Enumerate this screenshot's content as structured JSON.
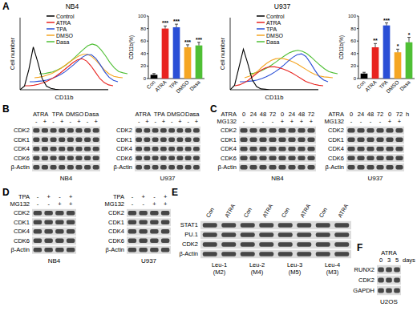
{
  "panel_labels": [
    "A",
    "B",
    "C",
    "D",
    "E",
    "F"
  ],
  "chart_data": [
    {
      "type": "line",
      "title": "NB4",
      "xlabel": "CD11b",
      "ylabel": "Cell number",
      "xlim": [
        0,
        10
      ],
      "ylim": [
        0,
        1.6
      ],
      "tick_labels": false,
      "legend": "upper left",
      "x": [
        0,
        0.5,
        1,
        1.5,
        2,
        2.5,
        3,
        3.5,
        4,
        4.5,
        5,
        5.5,
        6,
        6.5,
        7,
        7.5,
        8,
        8.5,
        9,
        9.5,
        10
      ],
      "series": [
        {
          "name": "Control",
          "color": "#000000",
          "values": [
            0,
            0.08,
            0.45,
            0.95,
            0.62,
            0.25,
            0.08,
            0.03,
            0.01,
            0,
            0,
            0,
            0,
            0,
            0,
            0,
            0,
            0,
            0,
            0,
            0
          ]
        },
        {
          "name": "ATRA",
          "color": "#e8231f",
          "values": [
            0,
            0,
            0.01,
            0.03,
            0.06,
            0.1,
            0.15,
            0.21,
            0.28,
            0.36,
            0.44,
            0.52,
            0.58,
            0.6,
            0.55,
            0.44,
            0.3,
            0.16,
            0.07,
            0.02,
            0
          ]
        },
        {
          "name": "TPA",
          "color": "#2a4fd6",
          "values": [
            0,
            0,
            0.01,
            0.02,
            0.04,
            0.07,
            0.11,
            0.16,
            0.22,
            0.3,
            0.38,
            0.47,
            0.55,
            0.6,
            0.6,
            0.52,
            0.38,
            0.22,
            0.1,
            0.03,
            0
          ]
        },
        {
          "name": "DMSO",
          "color": "#f5a623",
          "values": [
            0,
            0.01,
            0.03,
            0.06,
            0.1,
            0.15,
            0.21,
            0.28,
            0.35,
            0.42,
            0.48,
            0.52,
            0.52,
            0.47,
            0.38,
            0.27,
            0.16,
            0.08,
            0.03,
            0.01,
            0
          ]
        },
        {
          "name": "Dasa",
          "color": "#4fbf35",
          "values": [
            0,
            0,
            0.02,
            0.04,
            0.08,
            0.13,
            0.19,
            0.27,
            0.36,
            0.45,
            0.54,
            0.62,
            0.66,
            0.63,
            0.53,
            0.4,
            0.25,
            0.13,
            0.05,
            0.02,
            0
          ]
        }
      ]
    },
    {
      "type": "bar",
      "ylabel": "CD11b(%)",
      "categories": [
        "Con",
        "ATRA",
        "TPA",
        "DMSO",
        "Dasa"
      ],
      "values": [
        6,
        80,
        82,
        50,
        53
      ],
      "errors": [
        2,
        4,
        5,
        4,
        5
      ],
      "colors": [
        "#000000",
        "#e8231f",
        "#2a4fd6",
        "#f5a623",
        "#4fbf35"
      ],
      "ylim": [
        0,
        100
      ],
      "yticks": [
        0,
        20,
        40,
        60,
        80,
        100
      ],
      "annotations": [
        null,
        "***",
        "***",
        "***",
        "***"
      ]
    },
    {
      "type": "line",
      "title": "U937",
      "xlabel": "CD11b",
      "ylabel": "Cell number",
      "xlim": [
        0,
        10
      ],
      "ylim": [
        0,
        1.6
      ],
      "tick_labels": false,
      "legend": "upper left",
      "x": [
        0,
        0.5,
        1,
        1.5,
        2,
        2.5,
        3,
        3.5,
        4,
        4.5,
        5,
        5.5,
        6,
        6.5,
        7,
        7.5,
        8,
        8.5,
        9,
        9.5,
        10
      ],
      "series": [
        {
          "name": "Control",
          "color": "#000000",
          "values": [
            0,
            0.1,
            0.5,
            0.9,
            0.58,
            0.22,
            0.07,
            0.02,
            0.01,
            0,
            0,
            0,
            0,
            0,
            0,
            0,
            0,
            0,
            0,
            0,
            0
          ]
        },
        {
          "name": "ATRA",
          "color": "#e8231f",
          "values": [
            0,
            0.02,
            0.06,
            0.12,
            0.2,
            0.28,
            0.35,
            0.4,
            0.42,
            0.42,
            0.4,
            0.37,
            0.33,
            0.28,
            0.22,
            0.16,
            0.1,
            0.06,
            0.03,
            0.01,
            0
          ]
        },
        {
          "name": "TPA",
          "color": "#2a4fd6",
          "values": [
            0,
            0,
            0.01,
            0.02,
            0.04,
            0.07,
            0.11,
            0.16,
            0.22,
            0.29,
            0.37,
            0.46,
            0.54,
            0.6,
            0.62,
            0.56,
            0.42,
            0.26,
            0.12,
            0.04,
            0
          ]
        },
        {
          "name": "DMSO",
          "color": "#f5a623",
          "values": [
            0,
            0.03,
            0.08,
            0.15,
            0.24,
            0.32,
            0.38,
            0.42,
            0.43,
            0.42,
            0.39,
            0.35,
            0.3,
            0.24,
            0.18,
            0.12,
            0.07,
            0.04,
            0.02,
            0.01,
            0
          ]
        },
        {
          "name": "Dasa",
          "color": "#4fbf35",
          "values": [
            0,
            0.01,
            0.04,
            0.08,
            0.13,
            0.19,
            0.26,
            0.33,
            0.4,
            0.46,
            0.5,
            0.52,
            0.5,
            0.45,
            0.37,
            0.28,
            0.19,
            0.11,
            0.05,
            0.02,
            0
          ]
        }
      ]
    },
    {
      "type": "bar",
      "ylabel": "CD11b(%)",
      "categories": [
        "Con",
        "ATRA",
        "TPA",
        "DMSO",
        "Dasa"
      ],
      "values": [
        8,
        50,
        85,
        42,
        58
      ],
      "errors": [
        2,
        6,
        4,
        5,
        8
      ],
      "colors": [
        "#000000",
        "#e8231f",
        "#2a4fd6",
        "#f5a623",
        "#4fbf35"
      ],
      "ylim": [
        0,
        100
      ],
      "yticks": [
        0,
        20,
        40,
        60,
        80,
        100
      ],
      "annotations": [
        null,
        "**",
        "***",
        "*",
        "*"
      ]
    }
  ],
  "blots": {
    "B": [
      {
        "cell_line": "NB4",
        "groups": [
          "ATRA",
          "TPA",
          "DMSO",
          "Dasa"
        ],
        "conditions": [
          {
            "values": [
              "-",
              "+",
              "-",
              "+",
              "-",
              "+",
              "-",
              "+"
            ]
          }
        ],
        "rows": [
          "CDK2",
          "CDK1",
          "CDK4",
          "CDK6",
          "β-Actin"
        ]
      },
      {
        "cell_line": "U937",
        "groups": [
          "ATRA",
          "TPA",
          "DMSO",
          "Dasa"
        ],
        "conditions": [
          {
            "values": [
              "-",
              "+",
              "-",
              "+",
              "-",
              "+",
              "-",
              "+"
            ]
          }
        ],
        "rows": [
          "CDK2",
          "CDK1",
          "CDK4",
          "CDK6",
          "β-Actin"
        ]
      }
    ],
    "C": [
      {
        "cell_line": "NB4",
        "conditions": [
          {
            "label": "ATRA",
            "values": [
              "0",
              "24",
              "48",
              "72",
              "0",
              "24",
              "48",
              "72"
            ]
          },
          {
            "label": "MG132",
            "values": [
              "-",
              "-",
              "-",
              "-",
              "+",
              "+",
              "+",
              "+"
            ]
          }
        ],
        "rows": [
          "CDK2",
          "CDK1",
          "CDK4",
          "CDK6",
          "β-Actin"
        ]
      },
      {
        "cell_line": "U937",
        "conditions": [
          {
            "label": "ATRA",
            "values": [
              "0",
              "24",
              "48",
              "72",
              "0",
              "72"
            ],
            "unit": "h"
          },
          {
            "label": "MG132",
            "values": [
              "-",
              "-",
              "-",
              "-",
              "+",
              "+"
            ]
          }
        ],
        "rows": [
          "CDK2",
          "CDK1",
          "CDK4",
          "CDK6",
          "β-Actin"
        ]
      }
    ],
    "D": [
      {
        "cell_line": "NB4",
        "conditions": [
          {
            "label": "TPA",
            "values": [
              "-",
              "+",
              "-",
              "+"
            ]
          },
          {
            "label": "MG132",
            "values": [
              "-",
              "-",
              "+",
              "+"
            ]
          }
        ],
        "rows": [
          "CDK2",
          "CDK1",
          "CDK4",
          "CDK6",
          "β-Actin"
        ]
      },
      {
        "cell_line": "U937",
        "conditions": [
          {
            "label": "TPA",
            "values": [
              "-",
              "+",
              "-",
              "+"
            ]
          },
          {
            "label": "MG132",
            "values": [
              "-",
              "-",
              "+",
              "+"
            ]
          }
        ],
        "rows": [
          "CDK2",
          "CDK1",
          "CDK4",
          "CDK6",
          "β-Actin"
        ]
      }
    ],
    "E": [
      {
        "lane_labels": [
          "Con",
          "ATRA",
          "Con",
          "ATRA",
          "Con",
          "ATRA",
          "Con",
          "ATRA"
        ],
        "rows": [
          "STAT1",
          "PU.1",
          "CDK2",
          "β-Actin"
        ],
        "groups_below": [
          {
            "name": "Leu-1",
            "subtype": "(M2)"
          },
          {
            "name": "Leu-2",
            "subtype": "(M4)"
          },
          {
            "name": "Leu-3",
            "subtype": "(M5)"
          },
          {
            "name": "Leu-4",
            "subtype": "(M3)"
          }
        ]
      }
    ],
    "F": [
      {
        "title": "ATRA",
        "conditions": [
          {
            "values": [
              "0",
              "3",
              "5"
            ],
            "unit": "days"
          }
        ],
        "rows": [
          "RUNX2",
          "CDK2",
          "GAPDH"
        ],
        "cell_line": "U2OS"
      }
    ]
  }
}
